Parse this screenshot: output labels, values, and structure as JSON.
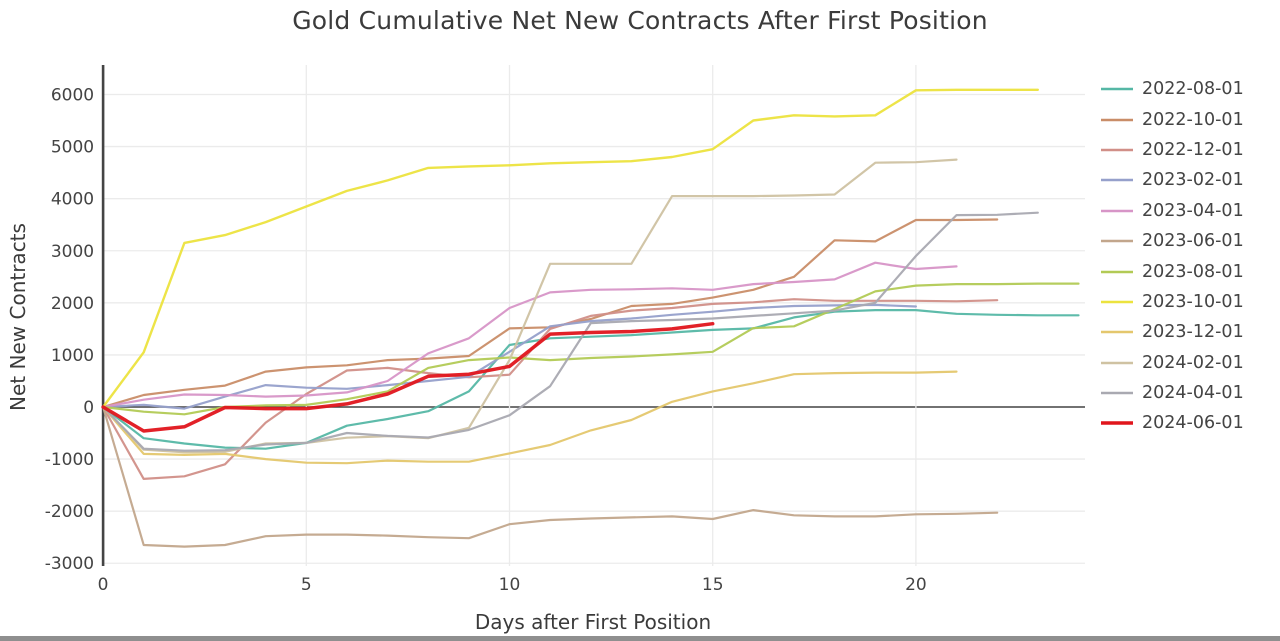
{
  "window": {
    "background": "#ffffff",
    "bottom_edge_color": "#8f8f8f"
  },
  "chart_data": {
    "type": "line",
    "title": "Gold Cumulative Net New Contracts After First Position",
    "xlabel": "Days after First Position",
    "ylabel": "Net New Contracts",
    "xlim": [
      0,
      24.3
    ],
    "ylim": [
      -3000,
      6500
    ],
    "grid": true,
    "legend_position": "right",
    "x_ticks": [
      0,
      5,
      10,
      15,
      20
    ],
    "y_ticks": [
      -3000,
      -2000,
      -1000,
      0,
      1000,
      2000,
      3000,
      4000,
      5000,
      6000
    ],
    "zero_line_color": "#444444",
    "grid_color": "#ebebeb",
    "axis_color": "#444444",
    "series": [
      {
        "name": "2022-08-01",
        "color": "#55b7a5",
        "width": 2.2,
        "values": [
          0,
          -600,
          -700,
          -780,
          -800,
          -690,
          -360,
          -230,
          -80,
          300,
          1190,
          1320,
          1350,
          1380,
          1430,
          1480,
          1510,
          1720,
          1830,
          1860,
          1860,
          1790,
          1770,
          1760,
          1760
        ]
      },
      {
        "name": "2022-10-01",
        "color": "#c98d68",
        "width": 2.2,
        "values": [
          0,
          230,
          330,
          410,
          680,
          760,
          800,
          900,
          930,
          980,
          1510,
          1530,
          1690,
          1940,
          1980,
          2100,
          2250,
          2500,
          3200,
          3180,
          3590,
          3590,
          3600
        ]
      },
      {
        "name": "2022-12-01",
        "color": "#d18f88",
        "width": 2.2,
        "values": [
          0,
          -1380,
          -1330,
          -1100,
          -300,
          250,
          700,
          750,
          650,
          570,
          620,
          1500,
          1750,
          1850,
          1900,
          1980,
          2010,
          2070,
          2040,
          2040,
          2040,
          2030,
          2050
        ]
      },
      {
        "name": "2023-02-01",
        "color": "#96a0cb",
        "width": 2.2,
        "values": [
          0,
          40,
          -30,
          200,
          420,
          370,
          350,
          420,
          500,
          580,
          1060,
          1550,
          1650,
          1700,
          1770,
          1830,
          1900,
          1940,
          1950,
          1960,
          1930
        ]
      },
      {
        "name": "2023-04-01",
        "color": "#d795c7",
        "width": 2.2,
        "values": [
          0,
          140,
          240,
          230,
          200,
          220,
          280,
          500,
          1030,
          1320,
          1900,
          2200,
          2250,
          2260,
          2280,
          2250,
          2360,
          2400,
          2450,
          2770,
          2650,
          2700
        ]
      },
      {
        "name": "2023-06-01",
        "color": "#c2a68c",
        "width": 2.2,
        "values": [
          0,
          -2650,
          -2680,
          -2650,
          -2480,
          -2450,
          -2450,
          -2470,
          -2500,
          -2520,
          -2250,
          -2170,
          -2140,
          -2120,
          -2100,
          -2150,
          -1980,
          -2080,
          -2100,
          -2100,
          -2060,
          -2050,
          -2030
        ]
      },
      {
        "name": "2023-08-01",
        "color": "#b2ca55",
        "width": 2.2,
        "values": [
          0,
          -90,
          -140,
          0,
          30,
          40,
          150,
          300,
          750,
          900,
          950,
          900,
          940,
          970,
          1010,
          1060,
          1515,
          1550,
          1880,
          2220,
          2330,
          2360,
          2360,
          2370,
          2370
        ]
      },
      {
        "name": "2023-10-01",
        "color": "#ece33e",
        "width": 2.4,
        "values": [
          0,
          1050,
          3150,
          3300,
          3550,
          3850,
          4150,
          4350,
          4590,
          4620,
          4640,
          4680,
          4700,
          4720,
          4800,
          4950,
          5500,
          5600,
          5580,
          5600,
          6080,
          6090,
          6090,
          6090
        ]
      },
      {
        "name": "2023-12-01",
        "color": "#e4c76d",
        "width": 2.2,
        "values": [
          0,
          -900,
          -920,
          -900,
          -1000,
          -1070,
          -1080,
          -1030,
          -1050,
          -1050,
          -890,
          -730,
          -450,
          -250,
          100,
          300,
          455,
          630,
          650,
          660,
          660,
          680
        ]
      },
      {
        "name": "2024-02-01",
        "color": "#cfc2a2",
        "width": 2.2,
        "values": [
          0,
          -820,
          -870,
          -860,
          -700,
          -690,
          -590,
          -560,
          -600,
          -400,
          900,
          2750,
          2750,
          2750,
          4050,
          4050,
          4050,
          4060,
          4080,
          4690,
          4700,
          4750
        ]
      },
      {
        "name": "2024-04-01",
        "color": "#a9a9b1",
        "width": 2.2,
        "values": [
          0,
          -800,
          -840,
          -830,
          -720,
          -690,
          -500,
          -555,
          -585,
          -440,
          -160,
          400,
          1610,
          1650,
          1670,
          1700,
          1750,
          1800,
          1850,
          2000,
          2900,
          3685,
          3690,
          3730
        ]
      },
      {
        "name": "2024-06-01",
        "color": "#e0151c",
        "width": 3.5,
        "values": [
          0,
          -460,
          -380,
          -10,
          -30,
          -30,
          60,
          250,
          590,
          630,
          780,
          1400,
          1430,
          1450,
          1500,
          1600
        ]
      }
    ]
  }
}
